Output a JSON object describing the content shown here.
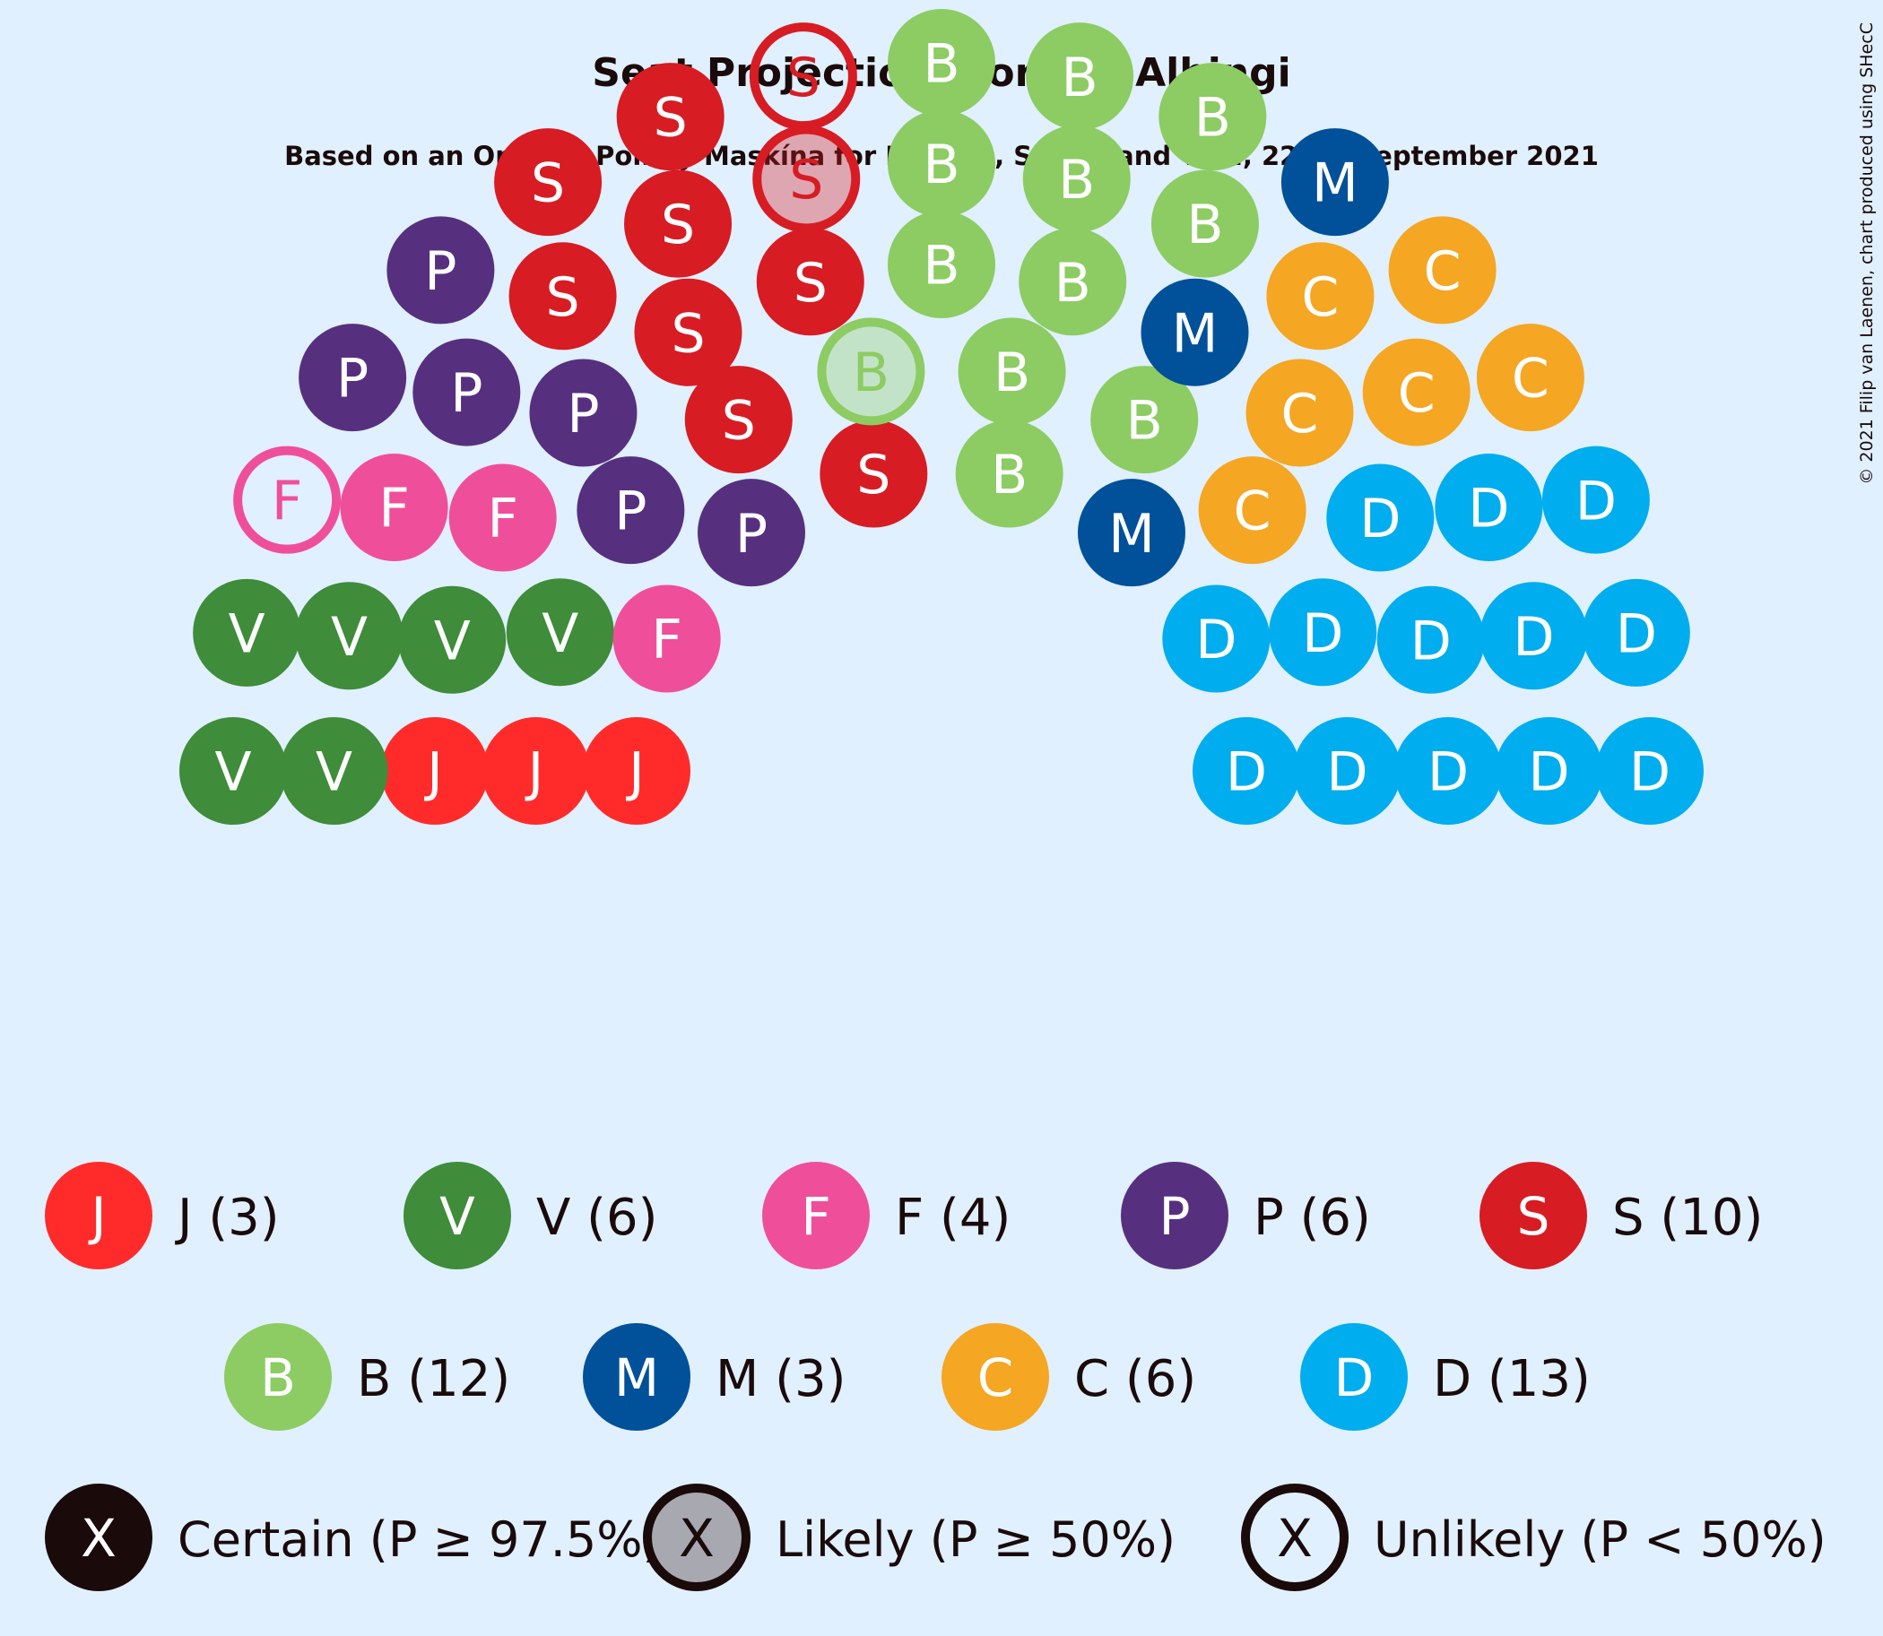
{
  "title": "Seat Projections for the Alþingi",
  "subtitle": "Based on an Opinion Poll by Maskína for Bylgjan, Stöð 2 and Vísir, 22–24 September 2021",
  "copyright": "© 2021 Filip van Laenen, chart produced using SHecC",
  "chart_data": {
    "type": "parliament",
    "total_seats": 63,
    "parties": [
      {
        "id": "J",
        "seats": 3,
        "color": "#ff2b2b",
        "legend": "J (3)"
      },
      {
        "id": "V",
        "seats": 6,
        "color": "#3f8c3a",
        "legend": "V (6)"
      },
      {
        "id": "F",
        "seats": 4,
        "color": "#ef4f9a",
        "legend": "F (4)"
      },
      {
        "id": "P",
        "seats": 6,
        "color": "#56307f",
        "legend": "P (6)"
      },
      {
        "id": "S",
        "seats": 10,
        "color": "#d71c23",
        "legend": "S (10)"
      },
      {
        "id": "B",
        "seats": 12,
        "color": "#8ccc63",
        "legend": "B (12)"
      },
      {
        "id": "M",
        "seats": 3,
        "color": "#00509a",
        "legend": "M (3)"
      },
      {
        "id": "C",
        "seats": 6,
        "color": "#f5a622",
        "legend": "C (6)"
      },
      {
        "id": "D",
        "seats": 13,
        "color": "#00adee",
        "legend": "D (13)"
      }
    ],
    "seats": [
      {
        "party": "J",
        "status": "certain"
      },
      {
        "party": "J",
        "status": "certain"
      },
      {
        "party": "J",
        "status": "certain"
      },
      {
        "party": "V",
        "status": "certain"
      },
      {
        "party": "V",
        "status": "certain"
      },
      {
        "party": "V",
        "status": "certain"
      },
      {
        "party": "V",
        "status": "certain"
      },
      {
        "party": "V",
        "status": "certain"
      },
      {
        "party": "V",
        "status": "certain"
      },
      {
        "party": "F",
        "status": "unlikely"
      },
      {
        "party": "F",
        "status": "certain"
      },
      {
        "party": "F",
        "status": "certain"
      },
      {
        "party": "F",
        "status": "certain"
      },
      {
        "party": "P",
        "status": "certain"
      },
      {
        "party": "P",
        "status": "certain"
      },
      {
        "party": "P",
        "status": "certain"
      },
      {
        "party": "P",
        "status": "certain"
      },
      {
        "party": "P",
        "status": "certain"
      },
      {
        "party": "P",
        "status": "certain"
      },
      {
        "party": "S",
        "status": "certain"
      },
      {
        "party": "S",
        "status": "certain"
      },
      {
        "party": "S",
        "status": "certain"
      },
      {
        "party": "S",
        "status": "certain"
      },
      {
        "party": "S",
        "status": "certain"
      },
      {
        "party": "S",
        "status": "certain"
      },
      {
        "party": "S",
        "status": "certain"
      },
      {
        "party": "S",
        "status": "certain"
      },
      {
        "party": "S",
        "status": "likely"
      },
      {
        "party": "S",
        "status": "unlikely"
      },
      {
        "party": "B",
        "status": "likely"
      },
      {
        "party": "B",
        "status": "certain"
      },
      {
        "party": "B",
        "status": "certain"
      },
      {
        "party": "B",
        "status": "certain"
      },
      {
        "party": "B",
        "status": "certain"
      },
      {
        "party": "B",
        "status": "certain"
      },
      {
        "party": "B",
        "status": "certain"
      },
      {
        "party": "B",
        "status": "certain"
      },
      {
        "party": "B",
        "status": "certain"
      },
      {
        "party": "B",
        "status": "certain"
      },
      {
        "party": "B",
        "status": "certain"
      },
      {
        "party": "B",
        "status": "certain"
      },
      {
        "party": "M",
        "status": "certain"
      },
      {
        "party": "M",
        "status": "certain"
      },
      {
        "party": "M",
        "status": "certain"
      },
      {
        "party": "C",
        "status": "certain"
      },
      {
        "party": "C",
        "status": "certain"
      },
      {
        "party": "C",
        "status": "certain"
      },
      {
        "party": "C",
        "status": "certain"
      },
      {
        "party": "C",
        "status": "certain"
      },
      {
        "party": "C",
        "status": "certain"
      },
      {
        "party": "D",
        "status": "certain"
      },
      {
        "party": "D",
        "status": "certain"
      },
      {
        "party": "D",
        "status": "certain"
      },
      {
        "party": "D",
        "status": "certain"
      },
      {
        "party": "D",
        "status": "certain"
      },
      {
        "party": "D",
        "status": "certain"
      },
      {
        "party": "D",
        "status": "certain"
      },
      {
        "party": "D",
        "status": "certain"
      },
      {
        "party": "D",
        "status": "certain"
      },
      {
        "party": "D",
        "status": "certain"
      },
      {
        "party": "D",
        "status": "certain"
      },
      {
        "party": "D",
        "status": "certain"
      },
      {
        "party": "D",
        "status": "certain"
      }
    ],
    "status_legend": [
      {
        "status": "certain",
        "symbol": "X",
        "label": "Certain (P ≥ 97.5%)"
      },
      {
        "status": "likely",
        "symbol": "X",
        "label": "Likely (P ≥ 50%)"
      },
      {
        "status": "unlikely",
        "symbol": "X",
        "label": "Unlikely (P < 50%)"
      }
    ]
  }
}
